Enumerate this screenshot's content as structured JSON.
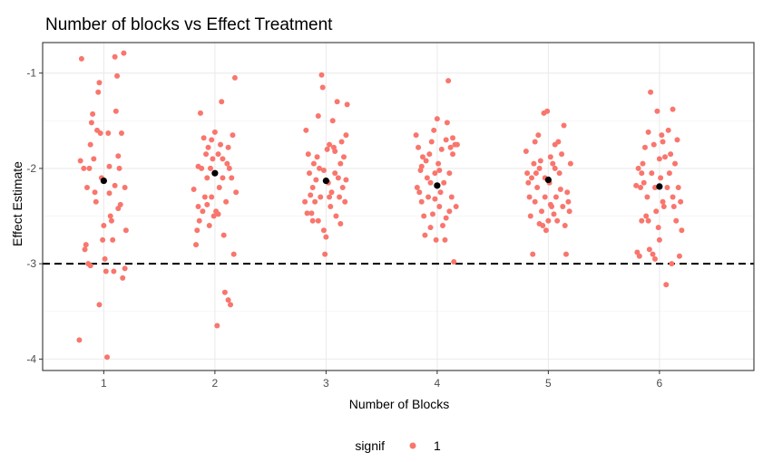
{
  "chart_data": {
    "type": "scatter",
    "title": "Number of blocks vs Effect Treatment",
    "xlabel": "Number of Blocks",
    "ylabel": "Effect Estimate",
    "x_ticks": [
      "1",
      "2",
      "3",
      "4",
      "5",
      "6"
    ],
    "y_ticks": [
      "-1",
      "-2",
      "-3",
      "-4"
    ],
    "xlim": [
      0.45,
      6.85
    ],
    "ylim": [
      -4.12,
      -0.68
    ],
    "grid": true,
    "point_color": "#f8766d",
    "mean_color": "#000000",
    "reference_line": {
      "y": -3,
      "style": "dashed",
      "color": "#000000"
    },
    "legend": {
      "title": "signif",
      "entries": [
        "1"
      ],
      "position": "bottom"
    },
    "means": [
      {
        "x": 1,
        "y": -2.13
      },
      {
        "x": 2,
        "y": -2.05
      },
      {
        "x": 3,
        "y": -2.13
      },
      {
        "x": 4,
        "y": -2.18
      },
      {
        "x": 5,
        "y": -2.12
      },
      {
        "x": 6,
        "y": -2.19
      }
    ],
    "series": [
      {
        "points": [
          [
            0.8,
            -0.85
          ],
          [
            1.18,
            -0.79
          ],
          [
            1.1,
            -0.83
          ],
          [
            0.79,
            -1.92
          ],
          [
            0.82,
            -2.0
          ],
          [
            0.85,
            -2.2
          ],
          [
            0.78,
            -3.8
          ],
          [
            0.83,
            -2.85
          ],
          [
            0.84,
            -2.8
          ],
          [
            0.86,
            -3.0
          ],
          [
            0.87,
            -2.0
          ],
          [
            0.88,
            -1.75
          ],
          [
            0.89,
            -1.52
          ],
          [
            0.9,
            -1.43
          ],
          [
            0.91,
            -1.9
          ],
          [
            0.92,
            -2.25
          ],
          [
            0.93,
            -2.35
          ],
          [
            0.94,
            -1.6
          ],
          [
            0.95,
            -1.2
          ],
          [
            0.96,
            -1.1
          ],
          [
            0.97,
            -1.63
          ],
          [
            0.98,
            -2.1
          ],
          [
            0.99,
            -2.75
          ],
          [
            1.0,
            -2.6
          ],
          [
            1.01,
            -2.95
          ],
          [
            1.02,
            -3.08
          ],
          [
            1.03,
            -3.98
          ],
          [
            1.04,
            -1.63
          ],
          [
            1.05,
            -1.98
          ],
          [
            1.06,
            -2.5
          ],
          [
            1.07,
            -2.55
          ],
          [
            1.08,
            -2.75
          ],
          [
            1.09,
            -3.08
          ],
          [
            1.11,
            -1.4
          ],
          [
            1.12,
            -1.03
          ],
          [
            1.13,
            -1.87
          ],
          [
            1.14,
            -2.0
          ],
          [
            1.15,
            -2.38
          ],
          [
            1.16,
            -1.63
          ],
          [
            1.17,
            -3.15
          ],
          [
            1.19,
            -3.05
          ],
          [
            1.2,
            -2.65
          ],
          [
            1.19,
            -2.2
          ],
          [
            0.96,
            -3.43
          ],
          [
            1.1,
            -2.18
          ],
          [
            1.13,
            -2.42
          ],
          [
            0.88,
            -3.02
          ],
          [
            1.05,
            -2.26
          ]
        ]
      },
      {
        "points": [
          [
            1.81,
            -2.22
          ],
          [
            1.83,
            -2.8
          ],
          [
            1.84,
            -2.65
          ],
          [
            1.85,
            -2.4
          ],
          [
            1.86,
            -2.55
          ],
          [
            1.87,
            -1.42
          ],
          [
            1.88,
            -2.0
          ],
          [
            1.89,
            -2.45
          ],
          [
            1.9,
            -1.68
          ],
          [
            1.91,
            -2.3
          ],
          [
            1.92,
            -1.85
          ],
          [
            1.93,
            -2.1
          ],
          [
            1.94,
            -1.78
          ],
          [
            1.95,
            -2.6
          ],
          [
            1.96,
            -2.0
          ],
          [
            1.97,
            -1.7
          ],
          [
            1.98,
            -1.9
          ],
          [
            1.99,
            -2.5
          ],
          [
            2.0,
            -1.62
          ],
          [
            2.01,
            -2.45
          ],
          [
            2.02,
            -3.65
          ],
          [
            2.03,
            -1.85
          ],
          [
            2.04,
            -2.2
          ],
          [
            2.05,
            -1.75
          ],
          [
            2.06,
            -1.3
          ],
          [
            2.07,
            -2.1
          ],
          [
            2.08,
            -2.7
          ],
          [
            2.09,
            -3.3
          ],
          [
            2.1,
            -2.35
          ],
          [
            2.11,
            -1.95
          ],
          [
            2.12,
            -1.78
          ],
          [
            2.13,
            -2.0
          ],
          [
            2.14,
            -3.43
          ],
          [
            2.15,
            -2.1
          ],
          [
            2.16,
            -1.65
          ],
          [
            2.17,
            -2.9
          ],
          [
            2.18,
            -1.05
          ],
          [
            2.19,
            -2.25
          ],
          [
            2.12,
            -3.38
          ],
          [
            1.97,
            -2.3
          ],
          [
            2.03,
            -2.48
          ],
          [
            1.85,
            -1.98
          ],
          [
            2.07,
            -1.9
          ],
          [
            1.93,
            -2.38
          ]
        ]
      },
      {
        "points": [
          [
            2.81,
            -2.35
          ],
          [
            2.82,
            -1.6
          ],
          [
            2.83,
            -2.47
          ],
          [
            2.84,
            -1.85
          ],
          [
            2.85,
            -2.05
          ],
          [
            2.86,
            -2.28
          ],
          [
            2.87,
            -2.47
          ],
          [
            2.88,
            -2.2
          ],
          [
            2.89,
            -1.95
          ],
          [
            2.9,
            -2.35
          ],
          [
            2.91,
            -2.12
          ],
          [
            2.92,
            -1.88
          ],
          [
            2.93,
            -2.55
          ],
          [
            2.94,
            -2.0
          ],
          [
            2.95,
            -2.3
          ],
          [
            2.96,
            -1.02
          ],
          [
            2.97,
            -1.15
          ],
          [
            2.98,
            -2.65
          ],
          [
            2.99,
            -2.9
          ],
          [
            3.0,
            -2.72
          ],
          [
            3.01,
            -1.8
          ],
          [
            3.02,
            -2.15
          ],
          [
            3.03,
            -1.75
          ],
          [
            3.04,
            -2.4
          ],
          [
            3.05,
            -2.25
          ],
          [
            3.06,
            -1.5
          ],
          [
            3.07,
            -1.78
          ],
          [
            3.08,
            -2.05
          ],
          [
            3.09,
            -2.5
          ],
          [
            3.1,
            -1.3
          ],
          [
            3.11,
            -2.1
          ],
          [
            3.12,
            -2.3
          ],
          [
            3.13,
            -1.95
          ],
          [
            3.14,
            -1.72
          ],
          [
            3.15,
            -2.2
          ],
          [
            3.16,
            -1.88
          ],
          [
            3.17,
            -2.35
          ],
          [
            3.18,
            -1.65
          ],
          [
            3.19,
            -1.33
          ],
          [
            3.13,
            -2.58
          ],
          [
            2.93,
            -1.45
          ],
          [
            3.03,
            -2.3
          ],
          [
            2.88,
            -2.55
          ],
          [
            3.08,
            -1.82
          ],
          [
            2.98,
            -2.02
          ],
          [
            3.18,
            -2.12
          ]
        ]
      },
      {
        "points": [
          [
            3.81,
            -1.65
          ],
          [
            3.82,
            -2.2
          ],
          [
            3.83,
            -1.78
          ],
          [
            3.84,
            -2.25
          ],
          [
            3.85,
            -2.02
          ],
          [
            3.86,
            -2.35
          ],
          [
            3.87,
            -1.88
          ],
          [
            3.88,
            -2.5
          ],
          [
            3.89,
            -2.7
          ],
          [
            3.9,
            -1.92
          ],
          [
            3.91,
            -2.1
          ],
          [
            3.92,
            -2.3
          ],
          [
            3.93,
            -1.85
          ],
          [
            3.94,
            -2.15
          ],
          [
            3.95,
            -1.72
          ],
          [
            3.96,
            -2.48
          ],
          [
            3.97,
            -1.6
          ],
          [
            3.98,
            -2.05
          ],
          [
            3.99,
            -2.75
          ],
          [
            4.0,
            -1.48
          ],
          [
            4.01,
            -1.95
          ],
          [
            4.02,
            -2.4
          ],
          [
            4.03,
            -2.25
          ],
          [
            4.04,
            -1.8
          ],
          [
            4.05,
            -2.6
          ],
          [
            4.06,
            -2.15
          ],
          [
            4.07,
            -2.75
          ],
          [
            4.08,
            -1.7
          ],
          [
            4.09,
            -1.52
          ],
          [
            4.1,
            -1.08
          ],
          [
            4.11,
            -2.05
          ],
          [
            4.12,
            -1.78
          ],
          [
            4.13,
            -2.3
          ],
          [
            4.14,
            -1.85
          ],
          [
            4.15,
            -2.98
          ],
          [
            4.16,
            -1.75
          ],
          [
            4.17,
            -2.4
          ],
          [
            4.18,
            -1.75
          ],
          [
            4.11,
            -2.45
          ],
          [
            3.86,
            -1.98
          ],
          [
            3.94,
            -2.62
          ],
          [
            4.02,
            -2.02
          ],
          [
            4.08,
            -2.52
          ],
          [
            3.98,
            -2.32
          ],
          [
            4.14,
            -1.68
          ]
        ]
      },
      {
        "points": [
          [
            4.8,
            -1.82
          ],
          [
            4.81,
            -2.05
          ],
          [
            4.82,
            -2.15
          ],
          [
            4.83,
            -2.3
          ],
          [
            4.84,
            -2.5
          ],
          [
            4.85,
            -2.1
          ],
          [
            4.86,
            -2.9
          ],
          [
            4.87,
            -1.95
          ],
          [
            4.88,
            -2.35
          ],
          [
            4.89,
            -2.05
          ],
          [
            4.9,
            -2.2
          ],
          [
            4.91,
            -1.65
          ],
          [
            4.92,
            -2.0
          ],
          [
            4.93,
            -1.92
          ],
          [
            4.94,
            -2.45
          ],
          [
            4.95,
            -2.6
          ],
          [
            4.96,
            -1.42
          ],
          [
            4.97,
            -2.3
          ],
          [
            4.98,
            -2.65
          ],
          [
            4.99,
            -1.4
          ],
          [
            5.0,
            -2.55
          ],
          [
            5.01,
            -2.15
          ],
          [
            5.02,
            -1.88
          ],
          [
            5.03,
            -2.4
          ],
          [
            5.04,
            -1.95
          ],
          [
            5.05,
            -2.48
          ],
          [
            5.06,
            -2.0
          ],
          [
            5.07,
            -2.3
          ],
          [
            5.08,
            -2.55
          ],
          [
            5.09,
            -1.72
          ],
          [
            5.1,
            -2.05
          ],
          [
            5.11,
            -2.22
          ],
          [
            5.12,
            -1.85
          ],
          [
            5.13,
            -2.4
          ],
          [
            5.14,
            -1.55
          ],
          [
            5.15,
            -2.6
          ],
          [
            5.16,
            -2.9
          ],
          [
            5.17,
            -2.25
          ],
          [
            5.18,
            -2.35
          ],
          [
            5.19,
            -2.45
          ],
          [
            5.2,
            -1.95
          ],
          [
            4.92,
            -2.58
          ],
          [
            5.06,
            -1.75
          ],
          [
            4.88,
            -1.72
          ],
          [
            5.02,
            -2.38
          ],
          [
            4.97,
            -2.1
          ]
        ]
      },
      {
        "points": [
          [
            5.79,
            -2.18
          ],
          [
            5.8,
            -2.88
          ],
          [
            5.81,
            -2.0
          ],
          [
            5.82,
            -2.92
          ],
          [
            5.83,
            -2.2
          ],
          [
            5.84,
            -2.55
          ],
          [
            5.85,
            -1.95
          ],
          [
            5.86,
            -2.15
          ],
          [
            5.87,
            -1.78
          ],
          [
            5.88,
            -2.5
          ],
          [
            5.89,
            -2.3
          ],
          [
            5.9,
            -1.62
          ],
          [
            5.91,
            -2.85
          ],
          [
            5.92,
            -1.2
          ],
          [
            5.93,
            -2.05
          ],
          [
            5.94,
            -2.9
          ],
          [
            5.95,
            -1.75
          ],
          [
            5.96,
            -2.2
          ],
          [
            5.97,
            -2.45
          ],
          [
            5.98,
            -1.4
          ],
          [
            5.99,
            -2.62
          ],
          [
            6.0,
            -1.9
          ],
          [
            6.01,
            -2.1
          ],
          [
            6.02,
            -1.65
          ],
          [
            6.03,
            -2.35
          ],
          [
            6.04,
            -2.4
          ],
          [
            6.05,
            -1.88
          ],
          [
            6.06,
            -3.22
          ],
          [
            6.07,
            -2.2
          ],
          [
            6.08,
            -1.6
          ],
          [
            6.09,
            -2.05
          ],
          [
            6.1,
            -1.85
          ],
          [
            6.11,
            -3.0
          ],
          [
            6.12,
            -1.38
          ],
          [
            6.13,
            -2.4
          ],
          [
            6.14,
            -1.95
          ],
          [
            6.15,
            -2.55
          ],
          [
            6.16,
            -1.7
          ],
          [
            6.17,
            -2.2
          ],
          [
            6.18,
            -2.92
          ],
          [
            6.19,
            -2.35
          ],
          [
            6.2,
            -2.65
          ],
          [
            5.84,
            -2.05
          ],
          [
            6.0,
            -2.75
          ],
          [
            5.9,
            -2.55
          ],
          [
            6.03,
            -1.72
          ],
          [
            6.12,
            -2.3
          ],
          [
            5.96,
            -2.95
          ]
        ]
      }
    ]
  }
}
